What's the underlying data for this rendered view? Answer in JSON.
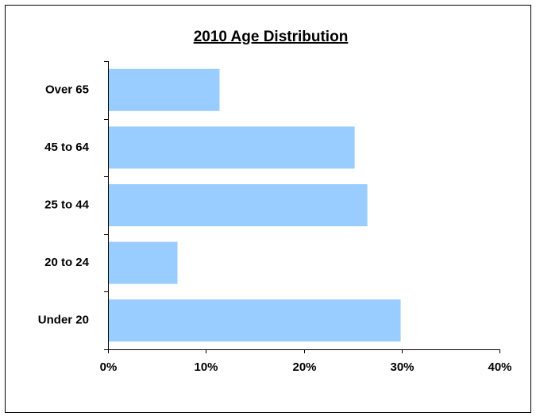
{
  "chart_data": {
    "type": "bar",
    "orientation": "horizontal",
    "title": "2010 Age Distribution",
    "categories": [
      "Over 65",
      "45 to 64",
      "25 to 44",
      "20 to 24",
      "Under 20"
    ],
    "values": [
      11.4,
      25.2,
      26.5,
      7.1,
      29.9
    ],
    "color": "#99ccff",
    "xlim": [
      0,
      40
    ],
    "xticks": [
      {
        "value": 0,
        "label": "0%"
      },
      {
        "value": 10,
        "label": "10%"
      },
      {
        "value": 20,
        "label": "20%"
      },
      {
        "value": 30,
        "label": "30%"
      },
      {
        "value": 40,
        "label": "40%"
      }
    ],
    "grid": false
  }
}
